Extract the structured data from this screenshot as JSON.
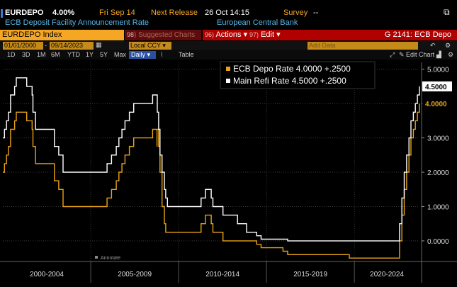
{
  "header": {
    "ticker": "EURDEPO",
    "value": "4.00%",
    "date": "Fri Sep 14",
    "next_release_label": "Next Release",
    "next_release": "26 Oct 14:15",
    "survey_label": "Survey",
    "survey_value": "--",
    "description": "ECB Deposit Facility Announcement Rate",
    "source": "European Central Bank"
  },
  "command_bar": {
    "security": "EURDEPO Index",
    "suggested_num": "98",
    "suggested": "Suggested Charts",
    "actions_num": "96)",
    "actions": "Actions",
    "edit_num": "97)",
    "edit": "Edit",
    "function": "G 2141: ECB Depo"
  },
  "toolbar": {
    "periods": [
      "1D",
      "3D",
      "1M",
      "6M",
      "YTD",
      "1Y",
      "5Y",
      "Max"
    ],
    "frequency": "Daily",
    "table": "Table",
    "start_date": "01/01/2000",
    "end_date": "09/14/2023",
    "currency": "Local CCY",
    "add_data": "Add Data",
    "edit_chart": "Edit Chart"
  },
  "colors": {
    "depo": "#e8a317",
    "refi": "#ffffff",
    "header_amber": "#f5a623",
    "header_cyan": "#55b8e8",
    "red": "#b00000"
  },
  "chart_data": {
    "type": "line",
    "x_type": "date",
    "xlim": [
      "2000-01-01",
      "2023-09-14"
    ],
    "ylim": [
      -0.6,
      5.2
    ],
    "yticks": [
      0,
      1,
      2,
      3,
      4,
      5
    ],
    "ytick_labels": [
      "0.0000",
      "1.0000",
      "2.0000",
      "3.0000",
      "4.0000",
      "5.0000"
    ],
    "xtick_labels": [
      "2000-2004",
      "2005-2009",
      "2010-2014",
      "2015-2019",
      "2020-2024"
    ],
    "legend_position": "top-right",
    "annotate_label": "Annotate",
    "series": [
      {
        "name": "ECB Depo Rate",
        "legend_value": "4.0000",
        "legend_change": "+.2500",
        "last_label": "4.0000",
        "color": "#e8a317",
        "points": [
          [
            "2000-01-01",
            2.0
          ],
          [
            "2000-02-04",
            2.25
          ],
          [
            "2000-03-17",
            2.5
          ],
          [
            "2000-04-28",
            2.75
          ],
          [
            "2000-06-09",
            3.25
          ],
          [
            "2000-09-01",
            3.5
          ],
          [
            "2000-10-06",
            3.75
          ],
          [
            "2001-05-11",
            3.5
          ],
          [
            "2001-08-31",
            3.25
          ],
          [
            "2001-09-18",
            2.75
          ],
          [
            "2001-11-09",
            2.25
          ],
          [
            "2002-12-06",
            1.75
          ],
          [
            "2003-03-07",
            1.5
          ],
          [
            "2003-06-06",
            1.0
          ],
          [
            "2005-12-06",
            1.25
          ],
          [
            "2006-03-08",
            1.5
          ],
          [
            "2006-06-15",
            1.75
          ],
          [
            "2006-08-09",
            2.0
          ],
          [
            "2006-10-11",
            2.25
          ],
          [
            "2006-12-13",
            2.5
          ],
          [
            "2007-03-14",
            2.75
          ],
          [
            "2007-06-13",
            3.0
          ],
          [
            "2008-07-09",
            3.25
          ],
          [
            "2008-10-08",
            2.75
          ],
          [
            "2008-10-09",
            3.25
          ],
          [
            "2008-11-12",
            2.75
          ],
          [
            "2008-12-10",
            2.0
          ],
          [
            "2009-01-21",
            1.0
          ],
          [
            "2009-03-11",
            0.5
          ],
          [
            "2009-04-08",
            0.25
          ],
          [
            "2011-04-13",
            0.5
          ],
          [
            "2011-07-13",
            0.75
          ],
          [
            "2011-11-09",
            0.5
          ],
          [
            "2011-12-14",
            0.25
          ],
          [
            "2012-07-11",
            0.0
          ],
          [
            "2014-06-11",
            -0.1
          ],
          [
            "2014-09-10",
            -0.2
          ],
          [
            "2015-12-09",
            -0.3
          ],
          [
            "2016-03-16",
            -0.4
          ],
          [
            "2019-09-18",
            -0.5
          ],
          [
            "2022-07-27",
            0.0
          ],
          [
            "2022-09-14",
            0.75
          ],
          [
            "2022-11-02",
            1.5
          ],
          [
            "2022-12-21",
            2.0
          ],
          [
            "2023-02-08",
            2.5
          ],
          [
            "2023-03-22",
            3.0
          ],
          [
            "2023-05-10",
            3.25
          ],
          [
            "2023-06-21",
            3.5
          ],
          [
            "2023-08-02",
            3.75
          ],
          [
            "2023-09-14",
            4.0
          ]
        ]
      },
      {
        "name": "Main Refi Rate",
        "legend_value": "4.5000",
        "legend_change": "+.2500",
        "last_label": "4.5000",
        "color": "#ffffff",
        "points": [
          [
            "2000-01-01",
            3.0
          ],
          [
            "2000-02-04",
            3.25
          ],
          [
            "2000-03-17",
            3.5
          ],
          [
            "2000-04-28",
            3.75
          ],
          [
            "2000-06-09",
            4.25
          ],
          [
            "2000-09-01",
            4.5
          ],
          [
            "2000-10-06",
            4.75
          ],
          [
            "2001-05-11",
            4.5
          ],
          [
            "2001-08-31",
            4.25
          ],
          [
            "2001-09-18",
            3.75
          ],
          [
            "2001-11-09",
            3.25
          ],
          [
            "2002-12-06",
            2.75
          ],
          [
            "2003-03-07",
            2.5
          ],
          [
            "2003-06-06",
            2.0
          ],
          [
            "2005-12-06",
            2.25
          ],
          [
            "2006-03-08",
            2.5
          ],
          [
            "2006-06-15",
            2.75
          ],
          [
            "2006-08-09",
            3.0
          ],
          [
            "2006-10-11",
            3.25
          ],
          [
            "2006-12-13",
            3.5
          ],
          [
            "2007-03-14",
            3.75
          ],
          [
            "2007-06-13",
            4.0
          ],
          [
            "2008-07-09",
            4.25
          ],
          [
            "2008-10-15",
            3.75
          ],
          [
            "2008-11-12",
            3.25
          ],
          [
            "2008-12-10",
            2.5
          ],
          [
            "2009-01-21",
            2.0
          ],
          [
            "2009-03-11",
            1.5
          ],
          [
            "2009-04-08",
            1.25
          ],
          [
            "2009-05-13",
            1.0
          ],
          [
            "2011-04-13",
            1.25
          ],
          [
            "2011-07-13",
            1.5
          ],
          [
            "2011-11-09",
            1.25
          ],
          [
            "2011-12-14",
            1.0
          ],
          [
            "2012-07-11",
            0.75
          ],
          [
            "2013-05-08",
            0.5
          ],
          [
            "2013-11-13",
            0.25
          ],
          [
            "2014-06-11",
            0.15
          ],
          [
            "2014-09-10",
            0.05
          ],
          [
            "2016-03-16",
            0.0
          ],
          [
            "2022-07-27",
            0.5
          ],
          [
            "2022-09-14",
            1.25
          ],
          [
            "2022-11-02",
            2.0
          ],
          [
            "2022-12-21",
            2.5
          ],
          [
            "2023-02-08",
            3.0
          ],
          [
            "2023-03-22",
            3.5
          ],
          [
            "2023-05-10",
            3.75
          ],
          [
            "2023-06-21",
            4.0
          ],
          [
            "2023-08-02",
            4.25
          ],
          [
            "2023-09-14",
            4.5
          ]
        ]
      }
    ]
  }
}
